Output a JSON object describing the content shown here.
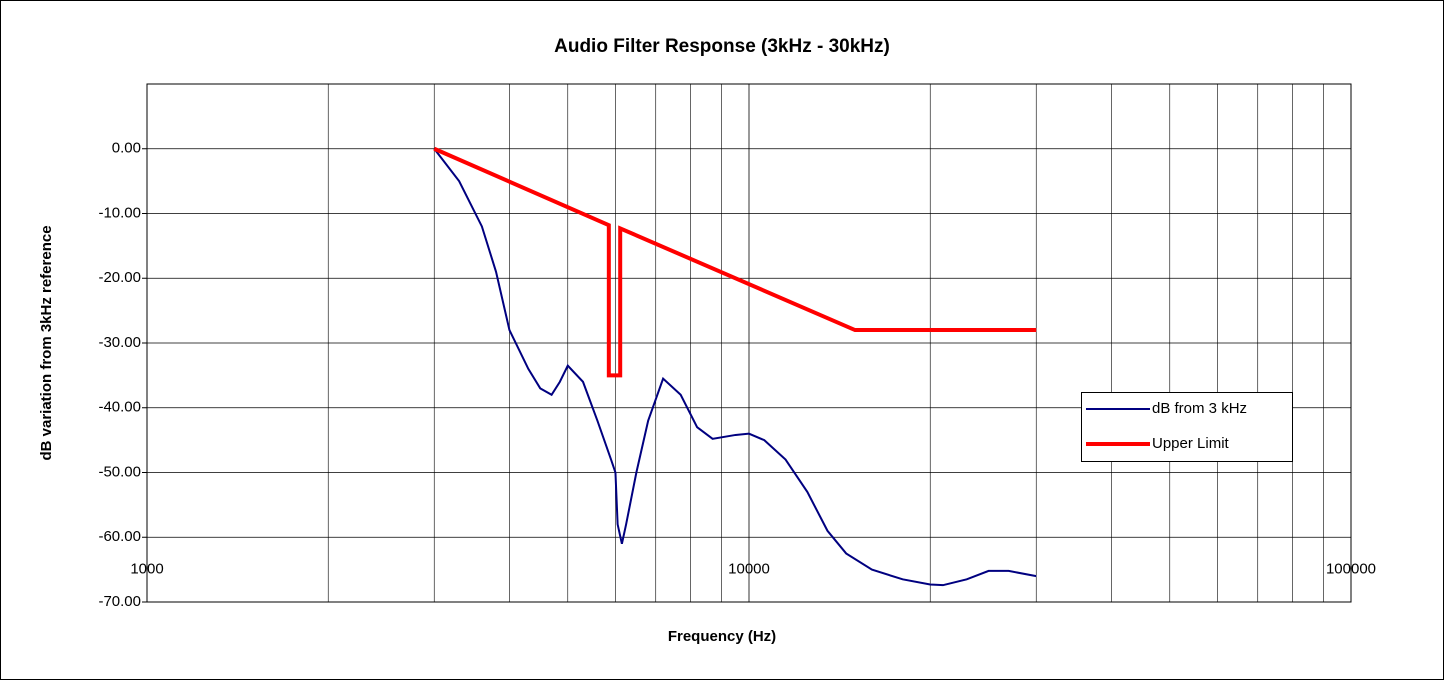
{
  "chart_data": {
    "type": "line",
    "title": "Audio Filter Response (3kHz - 30kHz)",
    "x_label": "Frequency (Hz)",
    "y_label": "dB variation from 3kHz reference",
    "xscale": "log",
    "xlim": [
      1000,
      100000
    ],
    "xticks": [
      1000,
      10000,
      100000
    ],
    "ylim": [
      -70,
      10
    ],
    "yticks": [
      {
        "value": -70,
        "label": "-70.00"
      },
      {
        "value": -60,
        "label": "-60.00"
      },
      {
        "value": -50,
        "label": "-50.00"
      },
      {
        "value": -40,
        "label": "-40.00"
      },
      {
        "value": -30,
        "label": "-30.00"
      },
      {
        "value": -20,
        "label": "-20.00"
      },
      {
        "value": -10,
        "label": "-10.00"
      },
      {
        "value": 0,
        "label": "0.00"
      }
    ],
    "grid": true,
    "legend": "right",
    "series": [
      {
        "name": "dB from 3 kHz",
        "color": "#000080",
        "x": [
          3000,
          3300,
          3600,
          3800,
          4000,
          4300,
          4500,
          4700,
          4850,
          5000,
          5300,
          5600,
          5900,
          6000,
          6050,
          6150,
          6250,
          6500,
          6800,
          7200,
          7700,
          8200,
          8700,
          9500,
          10000,
          10600,
          11500,
          12500,
          13500,
          14500,
          16000,
          18000,
          20000,
          21000,
          23000,
          25000,
          27000,
          30000
        ],
        "values": [
          0,
          -5,
          -12,
          -19,
          -28,
          -34,
          -37,
          -38,
          -36,
          -33.5,
          -36,
          -42,
          -48,
          -50,
          -58,
          -61,
          -58,
          -50,
          -42,
          -35.5,
          -38,
          -43,
          -44.8,
          -44.2,
          -44,
          -45,
          -48,
          -53,
          -59,
          -62.5,
          -65,
          -66.5,
          -67.3,
          -67.4,
          -66.5,
          -65.2,
          -65.2,
          -66
        ]
      },
      {
        "name": "Upper Limit",
        "color": "#ff0000",
        "x": [
          3000,
          5850,
          5850,
          6110,
          6110,
          15000,
          30000
        ],
        "values": [
          0,
          -11.8,
          -35,
          -35,
          -12.3,
          -28,
          -28
        ]
      }
    ]
  }
}
